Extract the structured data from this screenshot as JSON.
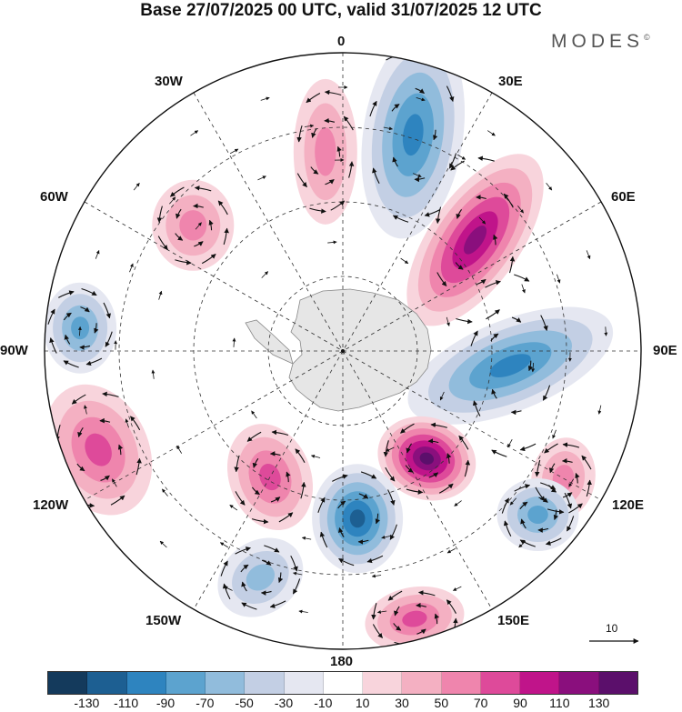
{
  "title": "Base 27/07/2025 00 UTC, valid 31/07/2025 12 UTC",
  "brand": "MODES",
  "brand_mark": "©",
  "longitude_labels": {
    "lon_0": "0",
    "lon_30e": "30E",
    "lon_60e": "60E",
    "lon_90e": "90E",
    "lon_120e": "120E",
    "lon_150e": "150E",
    "lon_180": "180",
    "lon_150w": "150W",
    "lon_120w": "120W",
    "lon_90w": "90W",
    "lon_60w": "60W",
    "lon_30w": "30W"
  },
  "reference_vector": {
    "label": "10",
    "value": 10
  },
  "colorbar": {
    "colors": [
      "#143a5c",
      "#1d5f92",
      "#2e84bf",
      "#5ca3cf",
      "#91bcdc",
      "#c3cfe4",
      "#e5e7f1",
      "#ffffff",
      "#f8d4dc",
      "#f4b0c2",
      "#ef85ad",
      "#de4a9a",
      "#c0148a",
      "#8a0f7d",
      "#5b0f6b"
    ],
    "tick_labels": [
      "-130",
      "-110",
      "-90",
      "-70",
      "-50",
      "-30",
      "-10",
      "10",
      "30",
      "50",
      "70",
      "90",
      "110",
      "130"
    ]
  },
  "chart_data": {
    "type": "heatmap",
    "projection": "south polar stereographic",
    "variable": "anomaly with wind vectors",
    "levels": [
      -130,
      -110,
      -90,
      -70,
      -50,
      -30,
      -10,
      10,
      30,
      50,
      70,
      90,
      110,
      130
    ],
    "anomaly_centers": [
      {
        "lon": 18,
        "value": -90,
        "sign": "negative"
      },
      {
        "lon": 50,
        "value": 110,
        "sign": "positive"
      },
      {
        "lon": 95,
        "value": -90,
        "sign": "negative"
      },
      {
        "lon": 142,
        "value": 130,
        "sign": "positive"
      },
      {
        "lon": 175,
        "value": -110,
        "sign": "negative"
      },
      {
        "lon": -150,
        "value": 70,
        "sign": "positive"
      },
      {
        "lon": -112,
        "value": 70,
        "sign": "positive"
      },
      {
        "lon": -85,
        "value": -70,
        "sign": "negative"
      },
      {
        "lon": -50,
        "value": 50,
        "sign": "positive"
      },
      {
        "lon": -5,
        "value": 50,
        "sign": "positive"
      },
      {
        "lon": 120,
        "value": 50,
        "sign": "positive"
      },
      {
        "lon": 130,
        "value": -70,
        "sign": "negative"
      },
      {
        "lon": 165,
        "value": 70,
        "sign": "positive"
      },
      {
        "lon": -160,
        "value": -50,
        "sign": "negative"
      }
    ]
  }
}
